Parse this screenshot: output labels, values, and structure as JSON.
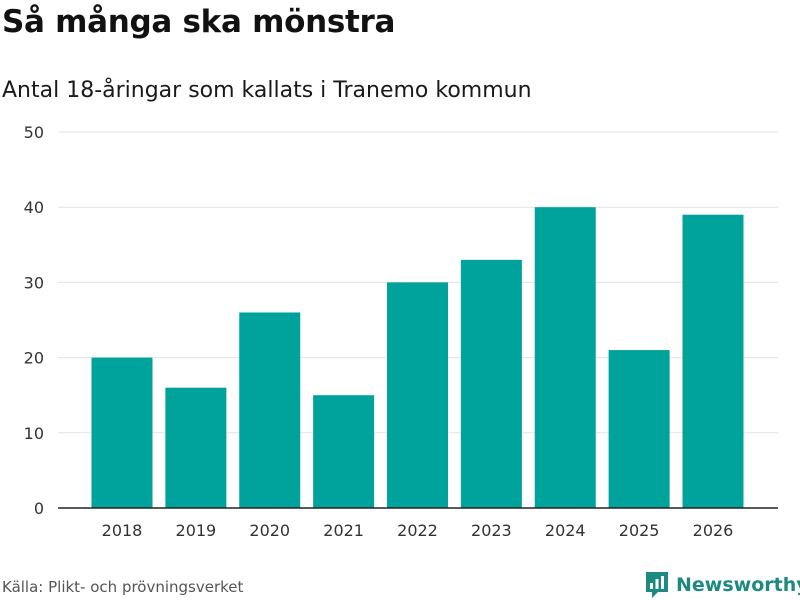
{
  "title": "Så många ska mönstra",
  "subtitle": "Antal 18-åringar som kallats i Tranemo kommun",
  "source": "Källa: Plikt- och prövningsverket",
  "brand": {
    "name": "Newsworthy",
    "icon": "newsworthy-logo-icon"
  },
  "colors": {
    "bar": "#00a39b",
    "grid": "#e3e3e3",
    "axis": "#222222",
    "brand": "#1c8a7e"
  },
  "chart_data": {
    "type": "bar",
    "title": "Så många ska mönstra",
    "subtitle": "Antal 18-åringar som kallats i Tranemo kommun",
    "xlabel": "",
    "ylabel": "",
    "categories": [
      "2018",
      "2019",
      "2020",
      "2021",
      "2022",
      "2023",
      "2024",
      "2025",
      "2026"
    ],
    "values": [
      20,
      16,
      26,
      15,
      30,
      33,
      40,
      21,
      39
    ],
    "ylim": [
      0,
      50
    ],
    "yticks": [
      0,
      10,
      20,
      30,
      40,
      50
    ],
    "grid": true
  }
}
